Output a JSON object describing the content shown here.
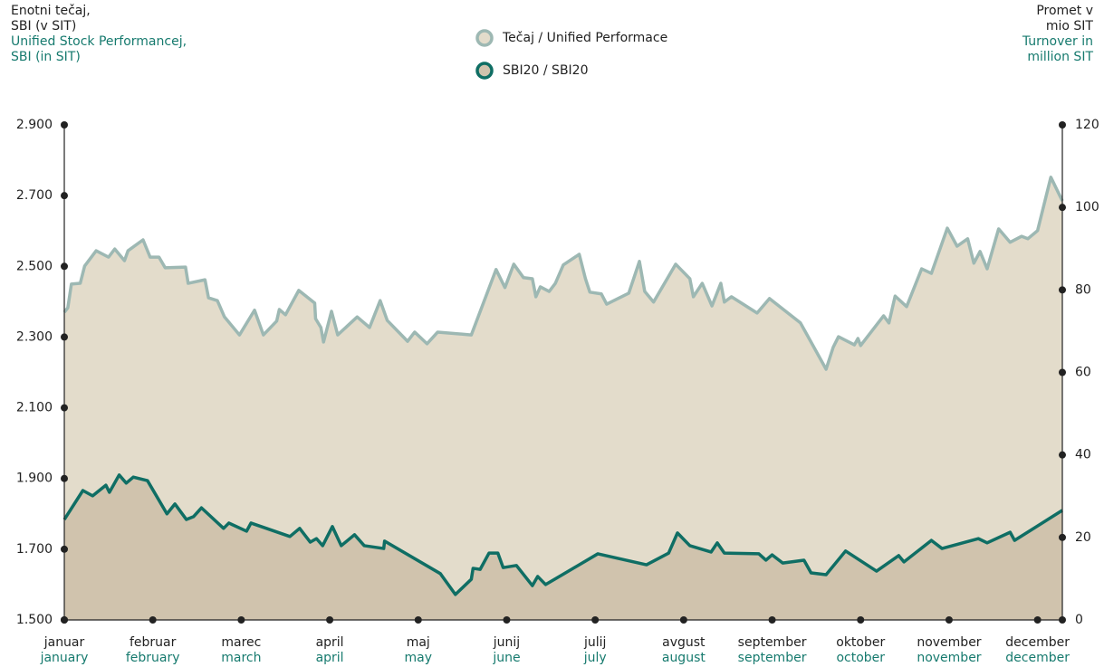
{
  "chart_data": {
    "type": "area",
    "y_label": {
      "sl": [
        "Enotni tečaj,",
        "SBI (v SIT)"
      ],
      "en": [
        "Unified Stock Performancej,",
        "SBI (in SIT)"
      ]
    },
    "y2_label": {
      "sl": [
        "Promet v",
        "mio SIT"
      ],
      "en": [
        "Turnover in",
        "million SIT"
      ]
    },
    "categories": [
      "januar",
      "februar",
      "marec",
      "april",
      "maj",
      "junij",
      "julij",
      "avgust",
      "september",
      "oktober",
      "november",
      "december"
    ],
    "categories_en": [
      "january",
      "february",
      "march",
      "april",
      "may",
      "june",
      "july",
      "august",
      "september",
      "october",
      "november",
      "december"
    ],
    "xticks": [
      0,
      1,
      2,
      3,
      4,
      5,
      6,
      7,
      8,
      9,
      10,
      11
    ],
    "xlim": [
      0,
      11.28
    ],
    "ylim": [
      1500,
      2900
    ],
    "yticks": [
      {
        "value": 1500,
        "label": "1.500"
      },
      {
        "value": 1700,
        "label": "1.700"
      },
      {
        "value": 1900,
        "label": "1.900"
      },
      {
        "value": 2100,
        "label": "2.100"
      },
      {
        "value": 2300,
        "label": "2.300"
      },
      {
        "value": 2500,
        "label": "2.500"
      },
      {
        "value": 2700,
        "label": "2.700"
      },
      {
        "value": 2900,
        "label": "2.900"
      }
    ],
    "y2lim": [
      0,
      120
    ],
    "y2ticks": [
      0,
      20,
      40,
      60,
      80,
      100,
      120
    ],
    "series": [
      {
        "name": "Tečaj / Unified Performace",
        "color": "#9db8b3",
        "fill": "#e3dccb",
        "x": [
          0,
          0.04,
          0.08,
          0.18,
          0.23,
          0.36,
          0.5,
          0.57,
          0.68,
          0.72,
          0.89,
          0.97,
          1.07,
          1.14,
          1.37,
          1.4,
          1.59,
          1.63,
          1.73,
          1.81,
          1.98,
          2.15,
          2.25,
          2.4,
          2.43,
          2.5,
          2.65,
          2.83,
          2.84,
          2.9,
          2.93,
          3.02,
          3.09,
          3.31,
          3.45,
          3.57,
          3.65,
          3.88,
          3.96,
          4.1,
          4.22,
          4.6,
          4.88,
          4.98,
          5.08,
          5.19,
          5.29,
          5.33,
          5.38,
          5.48,
          5.55,
          5.64,
          5.82,
          5.89,
          5.94,
          6.07,
          6.13,
          6.38,
          6.5,
          6.56,
          6.66,
          6.91,
          7.07,
          7.11,
          7.21,
          7.32,
          7.42,
          7.46,
          7.54,
          7.83,
          7.97,
          8.32,
          8.61,
          8.69,
          8.75,
          8.93,
          8.97,
          9,
          9.26,
          9.32,
          9.39,
          9.52,
          9.69,
          9.8,
          9.98,
          10.09,
          10.21,
          10.28,
          10.35,
          10.43,
          10.56,
          10.69,
          10.82,
          10.89,
          11,
          11.15,
          11.28
        ],
        "values": [
          2370,
          2383,
          2450,
          2452,
          2501,
          2544,
          2526,
          2549,
          2516,
          2544,
          2575,
          2526,
          2526,
          2496,
          2498,
          2452,
          2462,
          2411,
          2403,
          2357,
          2306,
          2376,
          2306,
          2345,
          2378,
          2363,
          2432,
          2396,
          2352,
          2327,
          2286,
          2373,
          2306,
          2357,
          2327,
          2403,
          2347,
          2288,
          2314,
          2281,
          2314,
          2306,
          2491,
          2440,
          2506,
          2468,
          2465,
          2414,
          2442,
          2429,
          2452,
          2504,
          2534,
          2465,
          2427,
          2422,
          2393,
          2424,
          2514,
          2429,
          2399,
          2506,
          2465,
          2414,
          2452,
          2388,
          2452,
          2399,
          2414,
          2368,
          2409,
          2340,
          2209,
          2271,
          2301,
          2278,
          2296,
          2276,
          2360,
          2340,
          2416,
          2386,
          2493,
          2480,
          2608,
          2557,
          2578,
          2509,
          2542,
          2493,
          2606,
          2568,
          2585,
          2578,
          2601,
          2752,
          2685
        ]
      },
      {
        "name": "SBI20 / SBI20",
        "color": "#0f6e64",
        "fill": "#d0c3ad",
        "x": [
          0,
          0.21,
          0.32,
          0.47,
          0.51,
          0.62,
          0.7,
          0.78,
          0.94,
          1.16,
          1.25,
          1.38,
          1.46,
          1.55,
          1.8,
          1.86,
          2.06,
          2.11,
          2.55,
          2.66,
          2.78,
          2.85,
          2.92,
          3.03,
          3.13,
          3.28,
          3.39,
          3.61,
          3.62,
          4.25,
          4.42,
          4.6,
          4.62,
          4.7,
          4.8,
          4.9,
          4.96,
          5.11,
          5.29,
          5.35,
          5.44,
          6.03,
          6.58,
          6.83,
          6.93,
          7.07,
          7.31,
          7.38,
          7.46,
          7.85,
          7.93,
          8,
          8.12,
          8.36,
          8.44,
          8.61,
          8.83,
          9.18,
          9.43,
          9.49,
          9.8,
          9.92,
          10.33,
          10.43,
          10.69,
          10.74,
          11.28
        ],
        "values": [
          1784,
          1866,
          1851,
          1881,
          1861,
          1910,
          1887,
          1904,
          1894,
          1800,
          1828,
          1784,
          1792,
          1817,
          1759,
          1774,
          1751,
          1774,
          1736,
          1759,
          1720,
          1730,
          1710,
          1764,
          1710,
          1741,
          1710,
          1702,
          1723,
          1631,
          1572,
          1615,
          1646,
          1643,
          1689,
          1689,
          1648,
          1654,
          1597,
          1623,
          1600,
          1687,
          1656,
          1689,
          1746,
          1710,
          1692,
          1718,
          1689,
          1687,
          1669,
          1684,
          1661,
          1669,
          1633,
          1628,
          1695,
          1638,
          1682,
          1664,
          1725,
          1702,
          1730,
          1718,
          1748,
          1725,
          1810
        ]
      }
    ]
  }
}
